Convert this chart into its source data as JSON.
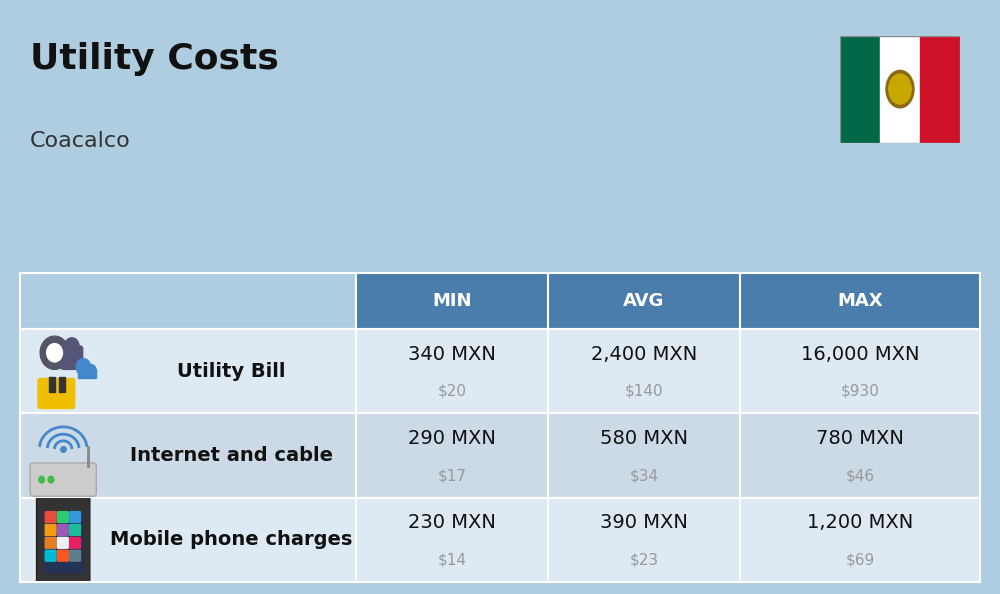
{
  "title": "Utility Costs",
  "subtitle": "Coacalco",
  "bg_color": "#aecde0",
  "header_color": "#4a7dab",
  "header_text_color": "#ffffff",
  "row_colors": [
    "#dde9f3",
    "#ccdae8"
  ],
  "col_headers": [
    "MIN",
    "AVG",
    "MAX"
  ],
  "rows": [
    {
      "label": "Utility Bill",
      "min_mxn": "340 MXN",
      "min_usd": "$20",
      "avg_mxn": "2,400 MXN",
      "avg_usd": "$140",
      "max_mxn": "16,000 MXN",
      "max_usd": "$930",
      "icon": "utility"
    },
    {
      "label": "Internet and cable",
      "min_mxn": "290 MXN",
      "min_usd": "$17",
      "avg_mxn": "580 MXN",
      "avg_usd": "$34",
      "max_mxn": "780 MXN",
      "max_usd": "$46",
      "icon": "internet"
    },
    {
      "label": "Mobile phone charges",
      "min_mxn": "230 MXN",
      "min_usd": "$14",
      "avg_mxn": "390 MXN",
      "avg_usd": "$23",
      "max_mxn": "1,200 MXN",
      "max_usd": "$69",
      "icon": "mobile"
    }
  ],
  "flag_colors": [
    "#006847",
    "#ffffff",
    "#ce1126"
  ],
  "mxn_fontsize": 14,
  "usd_fontsize": 11,
  "label_fontsize": 14,
  "header_fontsize": 13,
  "title_fontsize": 26,
  "subtitle_fontsize": 16,
  "usd_color": "#999999"
}
